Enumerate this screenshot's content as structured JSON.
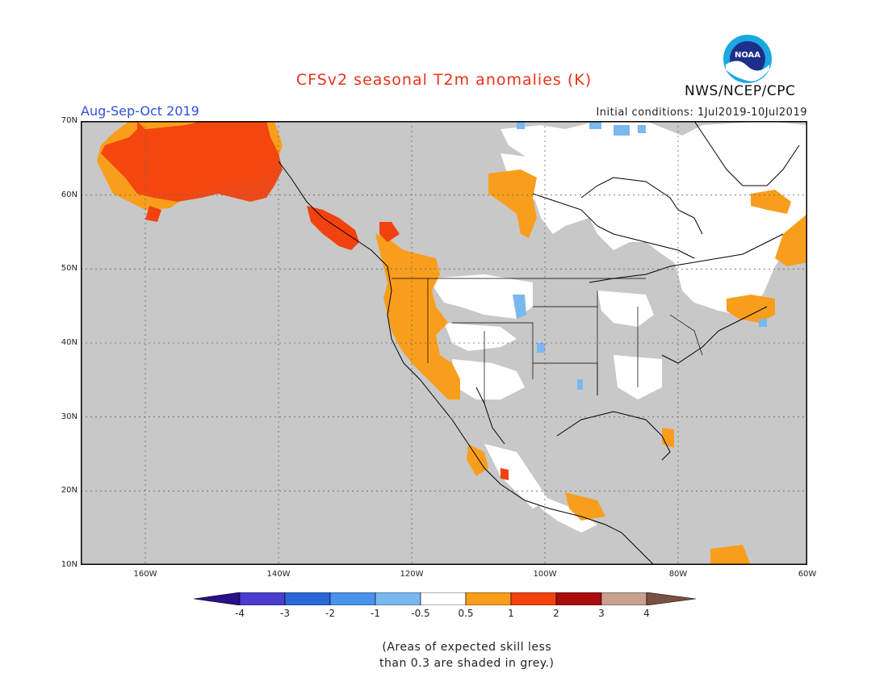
{
  "header": {
    "title": "CFSv2 seasonal T2m anomalies (K)",
    "period": "Aug-Sep-Oct 2019",
    "initial_conditions": "Initial conditions: 1Jul2019-10Jul2019",
    "agency": "NWS/NCEP/CPC",
    "logo_text": "NOAA"
  },
  "axes": {
    "lat_labels": [
      "70N",
      "60N",
      "50N",
      "40N",
      "30N",
      "20N",
      "10N"
    ],
    "lon_labels": [
      "160W",
      "140W",
      "120W",
      "100W",
      "80W",
      "60W"
    ]
  },
  "legend": {
    "labels": [
      "-4",
      "-3",
      "-2",
      "-1",
      "-0.5",
      "0.5",
      "1",
      "2",
      "3",
      "4"
    ],
    "colors": {
      "below_-4": "#2a0f8a",
      "-4_-3": "#4a3ccc",
      "-3_-2": "#2a66d8",
      "-2_-1": "#4a93ea",
      "-1_-0.5": "#7ab8f0",
      "-0.5_0.5": "#ffffff",
      "0.5_1": "#f99e1c",
      "1_2": "#f2420f",
      "2_3": "#a80c0c",
      "3_4": "#c9a090",
      "above_4": "#7a5040"
    },
    "grey_mask": "#c8c8c8"
  },
  "footnote": {
    "line1": "(Areas of expected skill less",
    "line2": "than 0.3 are shaded in grey.)"
  }
}
